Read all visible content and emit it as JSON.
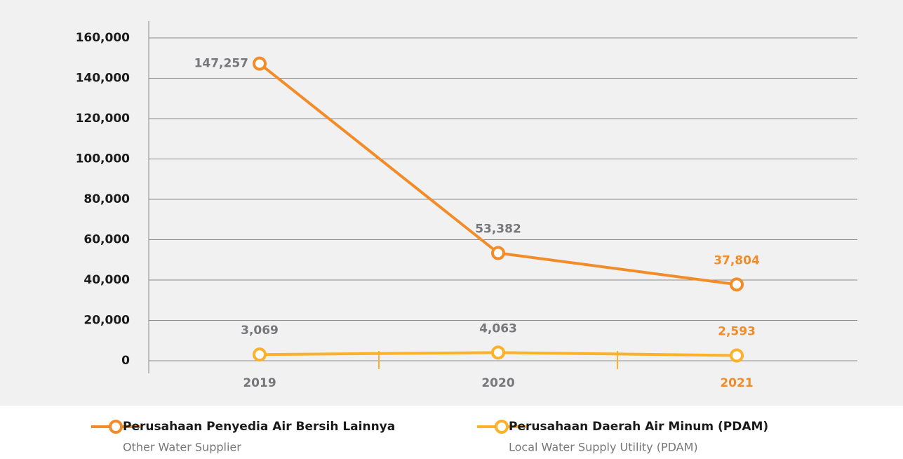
{
  "chart_data": {
    "type": "line",
    "categories": [
      "2019",
      "2020",
      "2021"
    ],
    "series": [
      {
        "name": "Perusahaan Penyedia Air Bersih Lainnya",
        "description": "Other Water Supplier",
        "color": "#f28c28",
        "values": [
          147257,
          53382,
          37804
        ],
        "value_labels": [
          "147,257",
          "53,382",
          "37,804"
        ]
      },
      {
        "name": "Perusahaan Daerah Air Minum (PDAM)",
        "description": "Local Water Supply Utility (PDAM)",
        "color": "#fbb12a",
        "values": [
          3069,
          4063,
          2593
        ],
        "value_labels": [
          "3,069",
          "4,063",
          "2,593"
        ]
      }
    ],
    "ylim": [
      0,
      160000
    ],
    "yticks": [
      0,
      {
        "value": 20000,
        "label": "20,000"
      },
      {
        "value": 40000,
        "label": "40,000"
      },
      {
        "value": 60000,
        "label": "60,000"
      },
      {
        "value": 80000,
        "label": "80,000"
      },
      {
        "value": 100000,
        "label": "100,000"
      },
      {
        "value": 120000,
        "label": "120,000"
      },
      {
        "value": 140000,
        "label": "140,000"
      },
      {
        "value": 160000,
        "label": "160,000"
      }
    ],
    "grid": true
  }
}
